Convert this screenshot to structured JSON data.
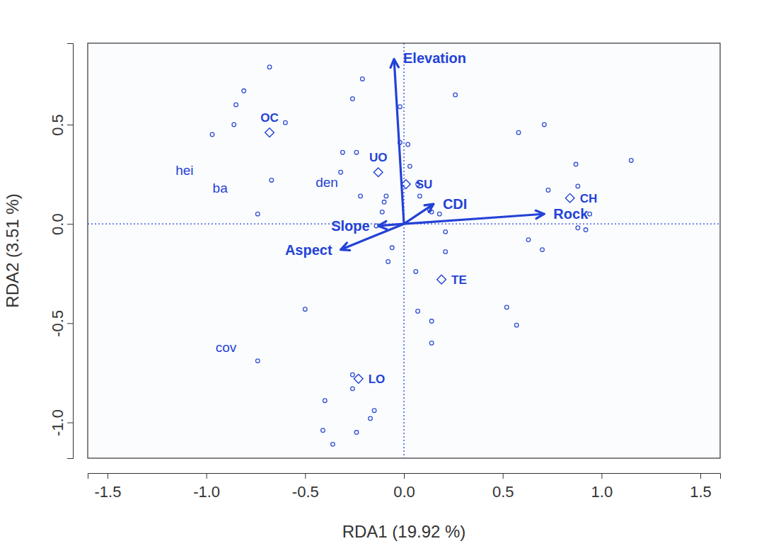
{
  "chart_data": {
    "type": "scatter",
    "x_label": "RDA1 (19.92 %)",
    "y_label": "RDA2 (3.51 %)",
    "xlim": [
      -1.6,
      1.6
    ],
    "ylim": [
      -1.18,
      0.91
    ],
    "xticks": [
      -1.5,
      {
        "value": -1,
        "label": "-1.0"
      },
      -0.5,
      {
        "value": 0,
        "label": "0.0"
      },
      0.5,
      {
        "value": 1,
        "label": "1.0"
      },
      1.5
    ],
    "yticks": [
      {
        "value": -1,
        "label": "-1.0"
      },
      -0.5,
      {
        "value": 0,
        "label": "0.0"
      },
      0.5
    ],
    "hlines": [
      0
    ],
    "vlines": [
      0
    ],
    "color": "#2342d6",
    "series": [
      {
        "type": "scatter",
        "marker": "circle",
        "color": "#3352d2",
        "x": [
          -0.68,
          -0.81,
          -0.85,
          -0.86,
          -0.97,
          -0.6,
          -0.67,
          -0.74,
          -0.21,
          -0.26,
          -0.02,
          0.26,
          -0.31,
          -0.24,
          -0.32,
          -0.02,
          0.02,
          0.03,
          -0.22,
          -0.09,
          -0.1,
          -0.11,
          0.07,
          0.08,
          0.13,
          0.14,
          0.18,
          0.21,
          0.21,
          -0.06,
          -0.08,
          0.06,
          -0.14,
          0.58,
          0.71,
          0.87,
          0.88,
          0.73,
          1.15,
          0.94,
          0.88,
          0.92,
          0.63,
          0.7,
          -0.5,
          0.07,
          0.14,
          0.52,
          0.57,
          0.14,
          -0.74,
          -0.26,
          -0.26,
          -0.4,
          -0.15,
          -0.17,
          -0.41,
          -0.24,
          -0.36
        ],
        "values": [
          0.79,
          0.67,
          0.6,
          0.5,
          0.45,
          0.51,
          0.22,
          0.05,
          0.73,
          0.63,
          0.59,
          0.65,
          0.36,
          0.36,
          0.26,
          0.41,
          0.4,
          0.29,
          0.14,
          0.14,
          0.11,
          0.06,
          0.2,
          0.14,
          0.07,
          0.06,
          0.05,
          -0.04,
          -0.14,
          -0.12,
          -0.19,
          -0.24,
          -0.01,
          0.46,
          0.5,
          0.3,
          0.19,
          0.17,
          0.32,
          0.05,
          -0.02,
          -0.03,
          -0.08,
          -0.13,
          -0.43,
          -0.44,
          -0.49,
          -0.42,
          -0.51,
          -0.6,
          -0.69,
          -0.76,
          -0.83,
          -0.89,
          -0.94,
          -0.98,
          -1.04,
          -1.05,
          -1.11
        ]
      },
      {
        "type": "scatter",
        "marker": "diamond",
        "color": "#2342d6",
        "labels": [
          "OC",
          "UO",
          "SU",
          "CH",
          "TE",
          "LO"
        ],
        "x": [
          -0.68,
          -0.13,
          0.01,
          0.84,
          0.19,
          -0.23
        ],
        "values": [
          0.46,
          0.26,
          0.2,
          0.13,
          -0.28,
          -0.78
        ]
      },
      {
        "type": "scatter",
        "marker": "none",
        "color": "#2342d6",
        "labels": [
          "hei",
          "ba",
          "den",
          "cov"
        ],
        "x": [
          -1.11,
          -0.93,
          -0.39,
          -0.9
        ],
        "values": [
          0.27,
          0.18,
          0.21,
          -0.62
        ]
      },
      {
        "type": "arrow",
        "color": "#2342d6",
        "origin": [
          0,
          0
        ],
        "labels": [
          "Elevation",
          "Rock",
          "CDI",
          "Slope",
          "Aspect"
        ],
        "x": [
          -0.05,
          0.71,
          0.15,
          -0.13,
          -0.32
        ],
        "values": [
          0.83,
          0.05,
          0.1,
          -0.01,
          -0.13
        ]
      }
    ]
  }
}
